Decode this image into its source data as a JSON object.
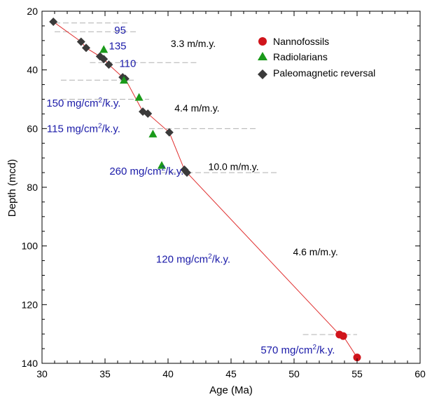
{
  "chart_data": {
    "type": "scatter",
    "xlabel": "Age (Ma)",
    "ylabel": "Depth (mcd)",
    "xlim": [
      30,
      60
    ],
    "ylim": [
      20,
      140
    ],
    "y_inverted": true,
    "x_ticks": [
      30,
      35,
      40,
      45,
      50,
      55,
      60
    ],
    "y_ticks": [
      20,
      40,
      60,
      80,
      100,
      120,
      140
    ],
    "legend_position": "top-right",
    "colors": {
      "nannofossils": "#d0141b",
      "radiolarians": "#1a9a1a",
      "paleomagnetic": "#3a3a3a",
      "age_model_line": "#e03030",
      "flux_text": "#1a1aa8",
      "boundary_lines": "#b0b0b0"
    },
    "series": [
      {
        "name": "Nannofossils",
        "marker": "circle",
        "points": [
          [
            53.6,
            130.2
          ],
          [
            53.9,
            130.7
          ],
          [
            55.0,
            138.0
          ]
        ]
      },
      {
        "name": "Radiolarians",
        "marker": "triangle",
        "points": [
          [
            34.9,
            33.0
          ],
          [
            36.5,
            43.5
          ],
          [
            37.7,
            49.3
          ],
          [
            38.8,
            61.8
          ],
          [
            39.5,
            72.5
          ]
        ]
      },
      {
        "name": "Paleomagnetic reversal",
        "marker": "diamond",
        "points": [
          [
            30.9,
            23.6
          ],
          [
            33.1,
            30.4
          ],
          [
            33.5,
            32.5
          ],
          [
            34.6,
            35.4
          ],
          [
            34.9,
            36.3
          ],
          [
            35.3,
            38.2
          ],
          [
            36.4,
            42.5
          ],
          [
            36.6,
            43.0
          ],
          [
            38.0,
            54.2
          ],
          [
            38.4,
            54.9
          ],
          [
            40.1,
            61.3
          ],
          [
            41.3,
            74.0
          ],
          [
            41.5,
            75.0
          ]
        ]
      }
    ],
    "age_model_line": [
      [
        30.9,
        23.6
      ],
      [
        33.1,
        30.4
      ],
      [
        33.5,
        32.5
      ],
      [
        34.6,
        35.4
      ],
      [
        34.9,
        36.3
      ],
      [
        35.3,
        38.2
      ],
      [
        36.4,
        42.5
      ],
      [
        36.6,
        43.0
      ],
      [
        38.0,
        54.2
      ],
      [
        38.4,
        54.9
      ],
      [
        40.1,
        61.3
      ],
      [
        41.3,
        74.0
      ],
      [
        41.5,
        75.0
      ],
      [
        53.6,
        130.2
      ],
      [
        53.9,
        130.7
      ],
      [
        55.0,
        138.0
      ]
    ],
    "rate_annotations": [
      {
        "text": "3.3 m/m.y.",
        "x": 42.0,
        "y": 31.0
      },
      {
        "text": "4.4 m/m.y.",
        "x": 42.3,
        "y": 53.0
      },
      {
        "text": "10.0 m/m.y.",
        "x": 45.2,
        "y": 73.0
      },
      {
        "text": "4.6 m/m.y.",
        "x": 51.7,
        "y": 102.0
      }
    ],
    "flux_annotations": [
      {
        "base": "95",
        "x": 36.2,
        "y": 26.5
      },
      {
        "base": "135",
        "x": 36.0,
        "y": 31.8
      },
      {
        "base": "110",
        "x": 36.8,
        "y": 37.8
      },
      {
        "base": "150 mg/cm",
        "sup": "2",
        "tail": "/k.y.",
        "x": 33.3,
        "y": 51.3
      },
      {
        "base": "115 mg/cm",
        "sup": "2",
        "tail": "/k.y.",
        "x": 33.3,
        "y": 60.0
      },
      {
        "base": "260 mg/cm",
        "sup": "2",
        "tail": "/k.y.",
        "x": 38.3,
        "y": 74.5
      },
      {
        "base": "120 mg/cm",
        "sup": "2",
        "tail": "/k.y.",
        "x": 42.0,
        "y": 104.5
      },
      {
        "base": "570 mg/cm",
        "sup": "2",
        "tail": "/k.y.",
        "x": 50.3,
        "y": 135.5
      }
    ],
    "boundary_lines": [
      {
        "x1": 31.0,
        "x2": 37.0,
        "y": 24.0
      },
      {
        "x1": 31.0,
        "x2": 37.5,
        "y": 27.0
      },
      {
        "x1": 33.8,
        "x2": 42.3,
        "y": 37.5
      },
      {
        "x1": 31.5,
        "x2": 37.5,
        "y": 43.5
      },
      {
        "x1": 31.5,
        "x2": 38.5,
        "y": 50.0
      },
      {
        "x1": 38.5,
        "x2": 47.0,
        "y": 60.0
      },
      {
        "x1": 39.5,
        "x2": 48.7,
        "y": 75.0
      },
      {
        "x1": 50.7,
        "x2": 55.0,
        "y": 130.2
      }
    ]
  },
  "legend": {
    "items": [
      {
        "label": "Nannofossils"
      },
      {
        "label": "Radiolarians"
      },
      {
        "label": "Paleomagnetic reversal"
      }
    ]
  }
}
